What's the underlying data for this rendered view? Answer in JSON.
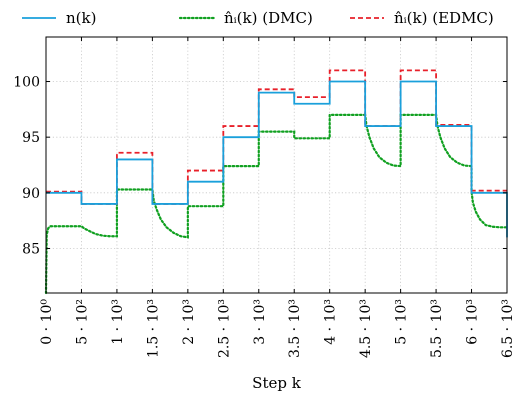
{
  "chart_data": {
    "type": "line",
    "xlabel": "Step k",
    "ylabel": "",
    "xlim": [
      0,
      6500
    ],
    "ylim": [
      81,
      104
    ],
    "grid": true,
    "grid_style": "dotted",
    "legend_position": "top",
    "x_ticks": [
      {
        "value": 0,
        "label": "0 · 10⁰"
      },
      {
        "value": 500,
        "label": "5 · 10²"
      },
      {
        "value": 1000,
        "label": "1 · 10³"
      },
      {
        "value": 1500,
        "label": "1.5 · 10³"
      },
      {
        "value": 2000,
        "label": "2 · 10³"
      },
      {
        "value": 2500,
        "label": "2.5 · 10³"
      },
      {
        "value": 3000,
        "label": "3 · 10³"
      },
      {
        "value": 3500,
        "label": "3.5 · 10³"
      },
      {
        "value": 4000,
        "label": "4 · 10³"
      },
      {
        "value": 4500,
        "label": "4.5 · 10³"
      },
      {
        "value": 5000,
        "label": "5 · 10³"
      },
      {
        "value": 5500,
        "label": "5.5 · 10³"
      },
      {
        "value": 6000,
        "label": "6 · 10³"
      },
      {
        "value": 6500,
        "label": "6.5 · 10³"
      }
    ],
    "y_ticks": [
      {
        "value": 85,
        "label": "85"
      },
      {
        "value": 90,
        "label": "90"
      },
      {
        "value": 95,
        "label": "95"
      },
      {
        "value": 100,
        "label": "100"
      }
    ],
    "series": [
      {
        "name": "n(k)",
        "color": "#1aa0db",
        "style": "solid",
        "x": [
          0,
          500,
          500,
          1000,
          1000,
          1500,
          1500,
          2000,
          2000,
          2500,
          2500,
          3000,
          3000,
          3500,
          3500,
          4000,
          4000,
          4500,
          4500,
          5000,
          5000,
          5500,
          5500,
          6000,
          6000,
          6500,
          6500
        ],
        "y": [
          90,
          90,
          89,
          89,
          93,
          93,
          89,
          89,
          91,
          91,
          95,
          95,
          99,
          99,
          98,
          98,
          100,
          100,
          96,
          96,
          100,
          100,
          96,
          96,
          90,
          90,
          86
        ]
      },
      {
        "name": "n̂ᵢ(k) (DMC)",
        "color": "#10a020",
        "style": "dotted",
        "x": [
          0,
          10,
          30,
          60,
          200,
          400,
          500,
          540,
          600,
          700,
          800,
          900,
          1000,
          1000,
          1500,
          1520,
          1560,
          1620,
          1700,
          1800,
          1900,
          2000,
          2000,
          2500,
          2500,
          3000,
          3000,
          3500,
          3500,
          4000,
          4000,
          4500,
          4520,
          4560,
          4620,
          4700,
          4800,
          4900,
          5000,
          5000,
          5500,
          5520,
          5560,
          5620,
          5700,
          5800,
          5900,
          6000,
          6000,
          6020,
          6060,
          6120,
          6200,
          6300,
          6400,
          6500
        ],
        "y": [
          81,
          86.2,
          86.8,
          87,
          87,
          87,
          87,
          86.8,
          86.6,
          86.3,
          86.15,
          86.1,
          86.1,
          90.3,
          90.3,
          89.3,
          88.5,
          87.6,
          86.9,
          86.4,
          86.1,
          86,
          88.8,
          88.8,
          92.4,
          92.4,
          95.5,
          95.5,
          94.9,
          94.9,
          97,
          97,
          96.0,
          95.0,
          94.0,
          93.2,
          92.7,
          92.45,
          92.4,
          97,
          97,
          96.0,
          95.0,
          94.0,
          93.2,
          92.7,
          92.45,
          92.4,
          90.1,
          89.1,
          88.3,
          87.6,
          87.1,
          86.95,
          86.9,
          86.9
        ]
      },
      {
        "name": "n̂ᵢ(k) (EDMC)",
        "color": "#e8202a",
        "style": "dashed",
        "x": [
          0,
          500,
          500,
          1000,
          1000,
          1500,
          1500,
          2000,
          2000,
          2500,
          2500,
          3000,
          3000,
          3500,
          3500,
          4000,
          4000,
          4500,
          4500,
          5000,
          5000,
          5500,
          5500,
          6000,
          6000,
          6500
        ],
        "y": [
          90.1,
          90.1,
          89,
          89,
          93.6,
          93.6,
          89,
          89,
          92,
          92,
          96,
          96,
          99.3,
          99.3,
          98.6,
          98.6,
          101,
          101,
          96,
          96,
          101,
          101,
          96.1,
          96.1,
          90.2,
          90.2
        ]
      }
    ]
  }
}
